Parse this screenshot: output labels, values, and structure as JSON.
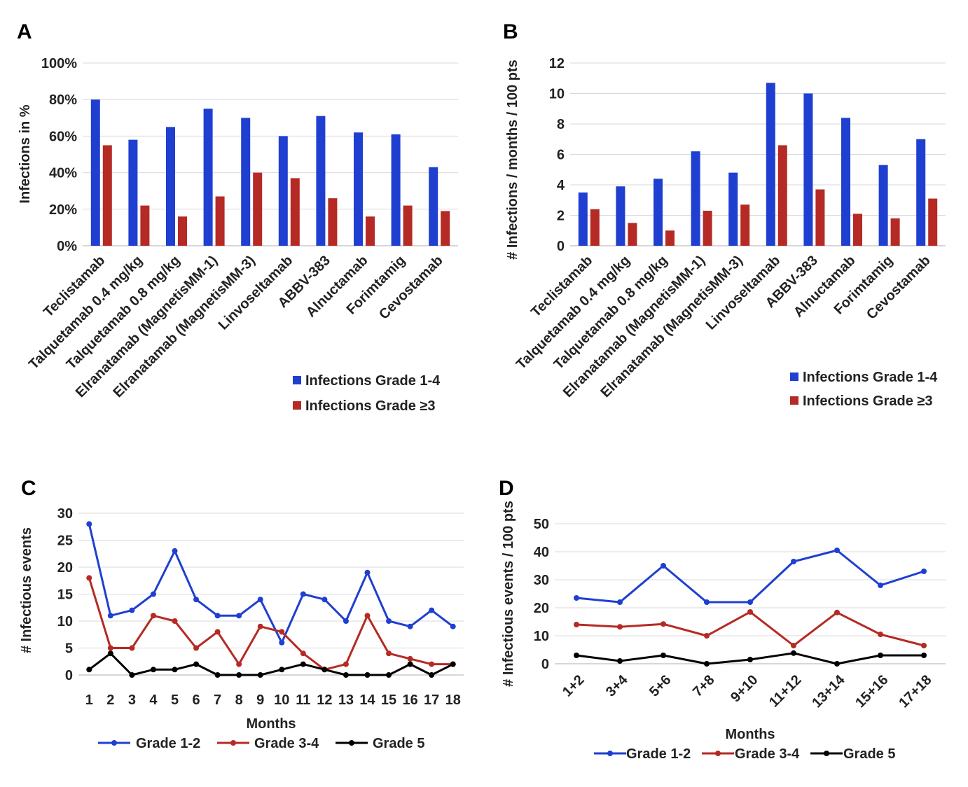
{
  "chart_data": [
    {
      "panel": "A",
      "type": "bar",
      "ylabel": "Infections in %",
      "ylim": [
        0,
        100
      ],
      "yticks": [
        "0%",
        "20%",
        "40%",
        "60%",
        "80%",
        "100%"
      ],
      "categories": [
        "Teclistamab",
        "Talquetamab 0.4 mg/kg",
        "Talquetamab 0.8 mg/kg",
        "Elranatamab (MagnetisMM-1)",
        "Elranatamab (MagnetisMM-3)",
        "Linvoseltamab",
        "ABBV-383",
        "Alnuctamab",
        "Forimtamig",
        "Cevostamab"
      ],
      "series": [
        {
          "name": "Infections Grade 1-4",
          "color": "#1f3fd1",
          "values": [
            80,
            58,
            65,
            75,
            70,
            60,
            71,
            62,
            61,
            43
          ]
        },
        {
          "name": "Infections Grade ≥3",
          "color": "#b52a24",
          "values": [
            55,
            22,
            16,
            27,
            40,
            37,
            26,
            16,
            22,
            19
          ]
        }
      ],
      "grid": true,
      "legend": "bottom-right"
    },
    {
      "panel": "B",
      "type": "bar",
      "ylabel": "# Infections / months / 100 pts",
      "ylim": [
        0,
        12
      ],
      "yticks": [
        "0",
        "2",
        "4",
        "6",
        "8",
        "10",
        "12"
      ],
      "categories": [
        "Teclistamab",
        "Talquetamab 0.4 mg/kg",
        "Talquetamab 0.8 mg/kg",
        "Elranatamab (MagnetisMM-1)",
        "Elranatamab (MagnetisMM-3)",
        "Linvoseltamab",
        "ABBV-383",
        "Alnuctamab",
        "Forimtamig",
        "Cevostamab"
      ],
      "series": [
        {
          "name": "Infections Grade 1-4",
          "color": "#1f3fd1",
          "values": [
            3.5,
            3.9,
            4.4,
            6.2,
            4.8,
            10.7,
            10.0,
            8.4,
            5.3,
            7.0
          ]
        },
        {
          "name": "Infections Grade ≥3",
          "color": "#b52a24",
          "values": [
            2.4,
            1.5,
            1.0,
            2.3,
            2.7,
            6.6,
            3.7,
            2.1,
            1.8,
            3.1
          ]
        }
      ],
      "grid": true,
      "legend": "bottom-right"
    },
    {
      "panel": "C",
      "type": "line",
      "xlabel": "Months",
      "ylabel": "# Infectious events",
      "ylim": [
        0,
        30
      ],
      "yticks": [
        "0",
        "5",
        "10",
        "15",
        "20",
        "25",
        "30"
      ],
      "categories": [
        "1",
        "2",
        "3",
        "4",
        "5",
        "6",
        "7",
        "8",
        "9",
        "10",
        "11",
        "12",
        "13",
        "14",
        "15",
        "16",
        "17",
        "18"
      ],
      "series": [
        {
          "name": "Grade 1-2",
          "color": "#1f3fd1",
          "values": [
            28,
            11,
            12,
            15,
            23,
            14,
            11,
            11,
            14,
            6,
            15,
            14,
            10,
            19,
            10,
            9,
            12,
            9
          ]
        },
        {
          "name": "Grade 3-4",
          "color": "#b52a24",
          "values": [
            18,
            5,
            5,
            11,
            10,
            5,
            8,
            2,
            9,
            8,
            4,
            1,
            2,
            11,
            4,
            3,
            2,
            2
          ]
        },
        {
          "name": "Grade 5",
          "color": "#000000",
          "values": [
            1,
            4,
            0,
            1,
            1,
            2,
            0,
            0,
            0,
            1,
            2,
            1,
            0,
            0,
            0,
            2,
            0,
            2
          ]
        }
      ],
      "grid": true,
      "legend": "bottom"
    },
    {
      "panel": "D",
      "type": "line",
      "xlabel": "Months",
      "ylabel": "# Infectious events / 100 pts",
      "ylim": [
        0,
        50
      ],
      "yticks": [
        "0",
        "10",
        "20",
        "30",
        "40",
        "50"
      ],
      "categories": [
        "1+2",
        "3+4",
        "5+6",
        "7+8",
        "9+10",
        "11+12",
        "13+14",
        "15+16",
        "17+18"
      ],
      "series": [
        {
          "name": "Grade 1-2",
          "color": "#1f3fd1",
          "values": [
            23.5,
            22,
            35,
            22,
            22,
            36.5,
            40.5,
            28,
            33
          ]
        },
        {
          "name": "Grade 3-4",
          "color": "#b52a24",
          "values": [
            14,
            13.2,
            14.2,
            10,
            18.5,
            6.5,
            18.3,
            10.5,
            6.5
          ]
        },
        {
          "name": "Grade 5",
          "color": "#000000",
          "values": [
            3,
            1,
            3,
            0,
            1.5,
            3.8,
            0,
            3,
            3
          ]
        }
      ],
      "grid": true,
      "legend": "bottom"
    }
  ]
}
